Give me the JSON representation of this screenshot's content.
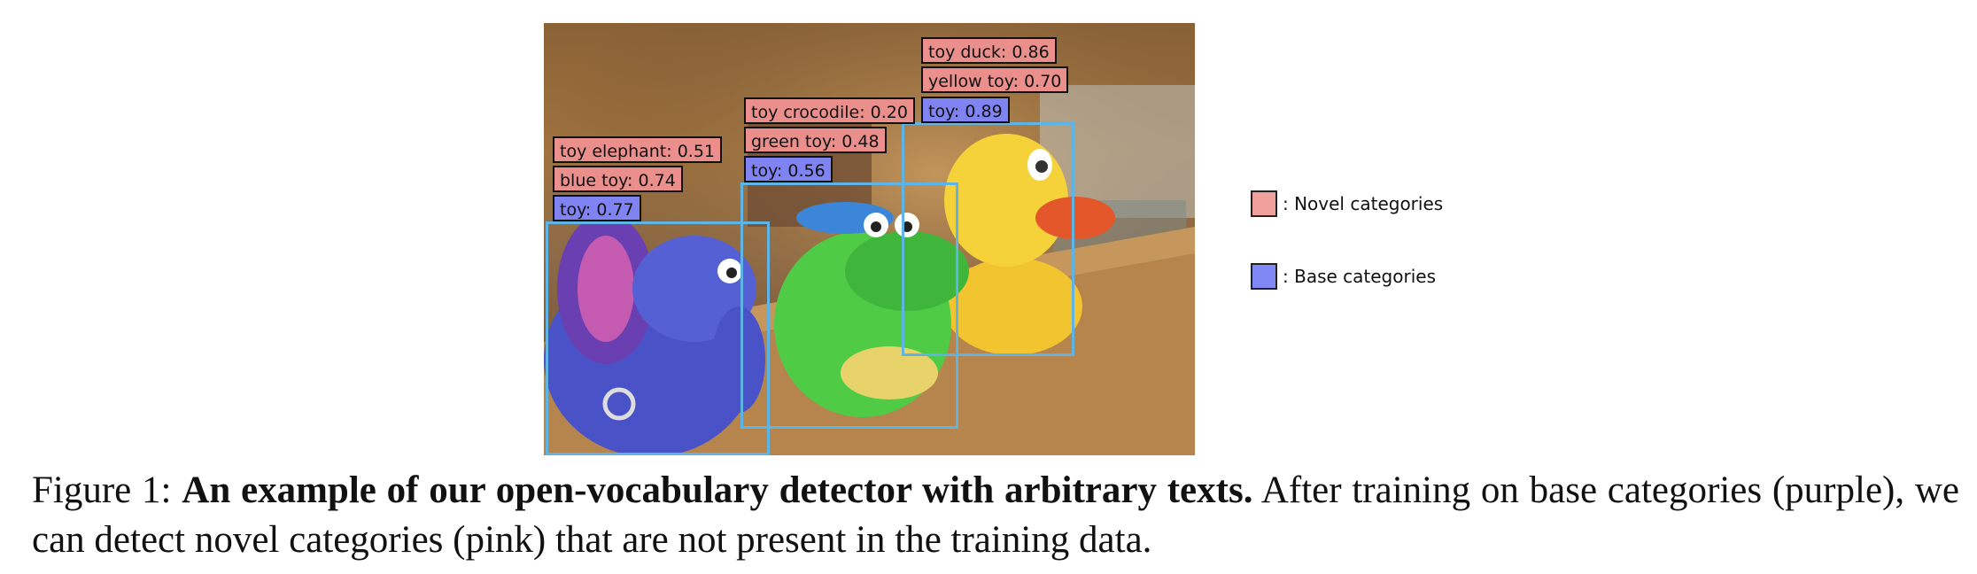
{
  "figure": {
    "boxes": [
      {
        "name": "elephant",
        "labels": [
          {
            "text": "toy elephant: 0.51",
            "kind": "novel"
          },
          {
            "text": "blue toy: 0.74",
            "kind": "novel"
          },
          {
            "text": "toy: 0.77",
            "kind": "base"
          }
        ]
      },
      {
        "name": "crocodile",
        "labels": [
          {
            "text": "toy crocodile: 0.20",
            "kind": "novel"
          },
          {
            "text": "green toy: 0.48",
            "kind": "novel"
          },
          {
            "text": "toy: 0.56",
            "kind": "base"
          }
        ]
      },
      {
        "name": "duck",
        "labels": [
          {
            "text": "toy duck: 0.86",
            "kind": "novel"
          },
          {
            "text": "yellow toy: 0.70",
            "kind": "novel"
          },
          {
            "text": "toy: 0.89",
            "kind": "base"
          }
        ]
      }
    ],
    "colors": {
      "novel": "#ea8f8c",
      "base": "#7f84f2",
      "box": "#5fb4e6"
    }
  },
  "legend": {
    "novel_label": ": Novel categories",
    "base_label": ": Base categories"
  },
  "caption": {
    "prefix": "Figure 1:",
    "bold": "An example of our open-vocabulary detector with arbitrary texts.",
    "rest": "After training on base categories (purple), we can detect novel categories (pink) that are not present in the training data."
  }
}
